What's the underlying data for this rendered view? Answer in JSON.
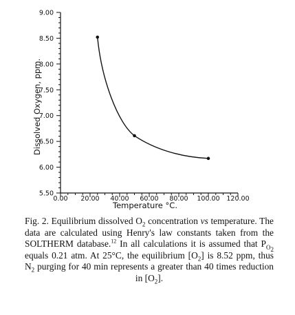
{
  "chart_data": {
    "type": "line",
    "xlabel": "Temperature °C.",
    "ylabel": "Dissolved Oxygen, ppm.",
    "xlim": [
      0,
      120
    ],
    "ylim": [
      5.5,
      9.0
    ],
    "x_ticks": [
      "0.00",
      "20.00",
      "40.00",
      "60.00",
      "80.00",
      "100.00",
      "120.00"
    ],
    "y_ticks": [
      "5.50",
      "6.00",
      "6.50",
      "7.00",
      "7.50",
      "8.00",
      "8.50",
      "9.00"
    ],
    "grid": false,
    "series": [
      {
        "x": [
          25,
          50,
          100
        ],
        "y": [
          8.52,
          6.61,
          6.17
        ]
      }
    ]
  },
  "caption": {
    "label": "Fig. 2.",
    "text_1": " Equilibrium dissolved O",
    "sub_1": "2",
    "text_2": " concentration ",
    "italic_1": "vs",
    "text_3": " temperature. The data are calculated using Henry's law constants taken from the SOLTHERM database.",
    "ref": "12",
    "text_4": " In all calculations it is assumed that P",
    "sub_2": "O",
    "sub_3": "2",
    "text_5": " equals 0.21 atm. At 25°C, the equilibrium [O",
    "sub_4": "2",
    "text_6": "] is 8.52 ppm, thus N",
    "sub_5": "2",
    "text_7": " purging for 40 min represents a greater than 40 times reduction in [O",
    "sub_6": "2",
    "text_8": "]."
  }
}
